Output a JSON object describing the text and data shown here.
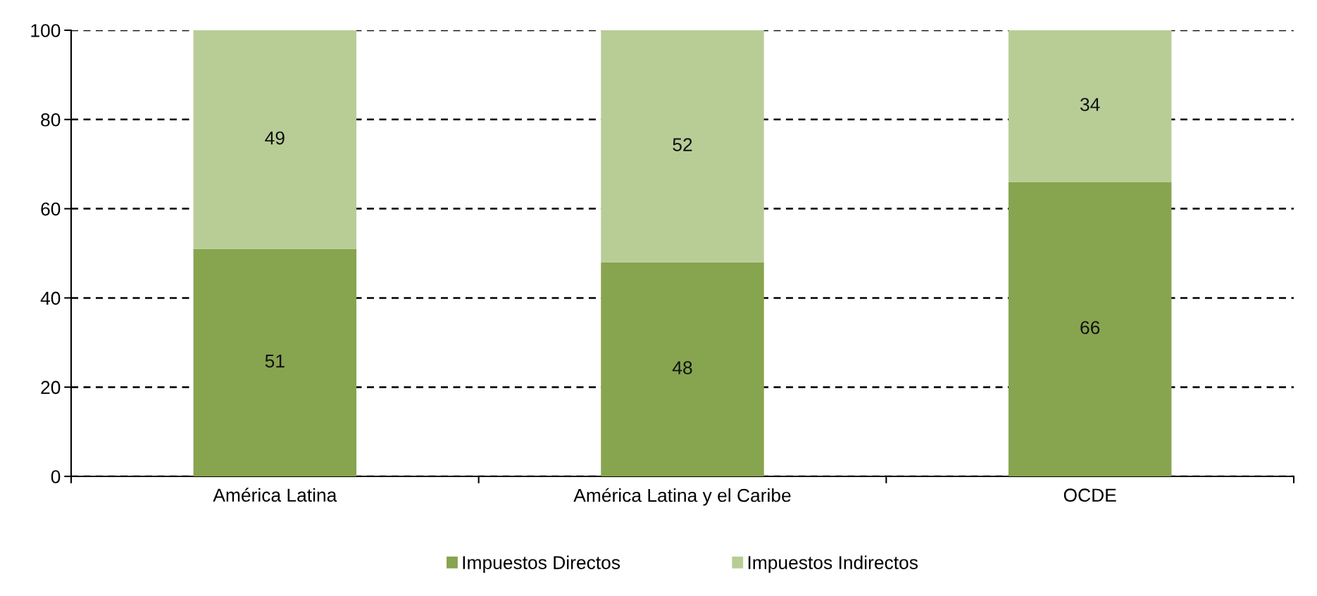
{
  "chart_data": {
    "type": "bar",
    "stacked": true,
    "categories": [
      "América Latina",
      "América Latina y el Caribe",
      "OCDE"
    ],
    "series": [
      {
        "name": "Impuestos Directos",
        "color": "#87a44f",
        "values": [
          51,
          48,
          66
        ]
      },
      {
        "name": "Impuestos Indirectos",
        "color": "#b8cd96",
        "values": [
          49,
          52,
          34
        ]
      }
    ],
    "ylim": [
      0,
      100
    ],
    "yticks": [
      0,
      20,
      40,
      60,
      80,
      100
    ],
    "grid": "y",
    "legend": "bottom",
    "data_labels": true
  }
}
